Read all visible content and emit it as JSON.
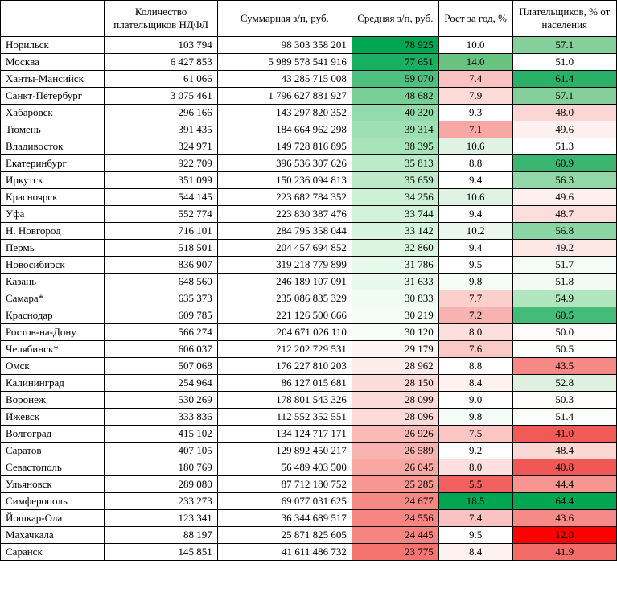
{
  "table": {
    "columns": [
      "",
      "Количество плательщиков НДФЛ",
      "Суммарная з/п, руб.",
      "Средняя з/п, руб.",
      "Рост за год, %",
      "Плательщиков, % от населения"
    ],
    "col_align": [
      "left",
      "right",
      "right",
      "right",
      "center",
      "center"
    ],
    "rows": [
      {
        "city": "Норильск",
        "count": "103 794",
        "sum": "98 303 358 201",
        "avg": "78 925",
        "growth": "10.0",
        "pct": "57.1",
        "c3": "#00a651",
        "c4": "#ffffff",
        "c5": "#85cf9b"
      },
      {
        "city": "Москва",
        "count": "6 427 853",
        "sum": "5 989 578 541 916",
        "avg": "77 651",
        "growth": "14.0",
        "pct": "51.0",
        "c3": "#19b061",
        "c4": "#6ac280",
        "c5": "#ffffff"
      },
      {
        "city": "Ханты-Мансийск",
        "count": "61 066",
        "sum": "43 285 715 008",
        "avg": "59 070",
        "growth": "7.4",
        "pct": "61.4",
        "c3": "#4ec07d",
        "c4": "#fac2c0",
        "c5": "#2bb068"
      },
      {
        "city": "Санкт-Петербург",
        "count": "3 075 461",
        "sum": "1 796 627 881 927",
        "avg": "48 682",
        "growth": "7.9",
        "pct": "57.1",
        "c3": "#77cf96",
        "c4": "#fcdad7",
        "c5": "#85cf9b"
      },
      {
        "city": "Хабаровск",
        "count": "296 166",
        "sum": "143 297 820 352",
        "avg": "40 320",
        "growth": "9.3",
        "pct": "48.0",
        "c3": "#94dbab",
        "c4": "#ffffff",
        "c5": "#fcd6d3"
      },
      {
        "city": "Тюмень",
        "count": "391 435",
        "sum": "184 664 962 298",
        "avg": "39 314",
        "growth": "7.1",
        "pct": "49.6",
        "c3": "#9fe0b3",
        "c4": "#f7a8a4",
        "c5": "#fef0ee"
      },
      {
        "city": "Владивосток",
        "count": "324 971",
        "sum": "149 728 816 895",
        "avg": "38 395",
        "growth": "10.6",
        "pct": "51.3",
        "c3": "#a6e3b9",
        "c4": "#e0f2e3",
        "c5": "#ffffff"
      },
      {
        "city": "Екатеринбург",
        "count": "922 709",
        "sum": "396 536 307 626",
        "avg": "35 813",
        "growth": "8.8",
        "pct": "60.9",
        "c3": "#bbebc8",
        "c4": "#ffffff",
        "c5": "#3bb671"
      },
      {
        "city": "Иркутск",
        "count": "351 099",
        "sum": "150 236 094 813",
        "avg": "35 659",
        "growth": "9.4",
        "pct": "56.3",
        "c3": "#bdebc9",
        "c4": "#ffffff",
        "c5": "#92d8a7"
      },
      {
        "city": "Красноярск",
        "count": "544 145",
        "sum": "223 682 784 352",
        "avg": "34 256",
        "growth": "10.6",
        "pct": "49.6",
        "c3": "#cdf1d5",
        "c4": "#e0f2e3",
        "c5": "#fef0ee"
      },
      {
        "city": "Уфа",
        "count": "552 774",
        "sum": "223 830 387 476",
        "avg": "33 744",
        "growth": "9.4",
        "pct": "48.7",
        "c3": "#d2f3da",
        "c4": "#ffffff",
        "c5": "#fddedc"
      },
      {
        "city": "Н. Новгород",
        "count": "716 101",
        "sum": "284 795 358 044",
        "avg": "33 142",
        "growth": "10.2",
        "pct": "56.8",
        "c3": "#d7f5de",
        "c4": "#ebf7ed",
        "c5": "#8ad5a1"
      },
      {
        "city": "Пермь",
        "count": "518 501",
        "sum": "204 457 694 852",
        "avg": "32 860",
        "growth": "9.4",
        "pct": "49.2",
        "c3": "#daf5e0",
        "c4": "#ffffff",
        "c5": "#fde7e4"
      },
      {
        "city": "Новосибирск",
        "count": "836 907",
        "sum": "319 218 779 899",
        "avg": "31 786",
        "growth": "9.5",
        "pct": "51.7",
        "c3": "#e6f9ea",
        "c4": "#ffffff",
        "c5": "#f5fbf6"
      },
      {
        "city": "Казань",
        "count": "648 560",
        "sum": "246 189 107 091",
        "avg": "31 633",
        "growth": "9.8",
        "pct": "51.8",
        "c3": "#e8f9ec",
        "c4": "#f5fbf6",
        "c5": "#f2faf3"
      },
      {
        "city": "Самара*",
        "count": "635 373",
        "sum": "235 086 835 329",
        "avg": "30 833",
        "growth": "7.7",
        "pct": "54.9",
        "c3": "#f0fcf3",
        "c4": "#fbcfcc",
        "c5": "#b0e5be"
      },
      {
        "city": "Краснодар",
        "count": "609 785",
        "sum": "221 126 500 666",
        "avg": "30 219",
        "growth": "7.2",
        "pct": "60.5",
        "c3": "#f5fdf7",
        "c4": "#f8b2af",
        "c5": "#45bb78"
      },
      {
        "city": "Ростов-на-Дону",
        "count": "566 274",
        "sum": "204 671 026 110",
        "avg": "30 120",
        "growth": "8.0",
        "pct": "50.0",
        "c3": "#f7fdf8",
        "c4": "#fde0de",
        "c5": "#fffbfb"
      },
      {
        "city": "Челябинск*",
        "count": "606 037",
        "sum": "212 202 729 531",
        "avg": "29 179",
        "growth": "7.6",
        "pct": "50.5",
        "c3": "#fef4f3",
        "c4": "#fbcac7",
        "c5": "#fdfffd"
      },
      {
        "city": "Омск",
        "count": "507 068",
        "sum": "176 227 810 203",
        "avg": "28 962",
        "growth": "8.8",
        "pct": "43.5",
        "c3": "#fdecea",
        "c4": "#ffffff",
        "c5": "#f58986"
      },
      {
        "city": "Калининград",
        "count": "254 964",
        "sum": "86 127 015 681",
        "avg": "28 150",
        "growth": "8.4",
        "pct": "52.8",
        "c3": "#fcdcd9",
        "c4": "#fef2f0",
        "c5": "#def1e1"
      },
      {
        "city": "Воронеж",
        "count": "530 269",
        "sum": "178 801 543 326",
        "avg": "28 099",
        "growth": "9.0",
        "pct": "50.3",
        "c3": "#fcdad7",
        "c4": "#ffffff",
        "c5": "#fffefd"
      },
      {
        "city": "Ижевск",
        "count": "333 836",
        "sum": "112 552 352 551",
        "avg": "28 096",
        "growth": "9.8",
        "pct": "51.4",
        "c3": "#fcdad7",
        "c4": "#f5fbf6",
        "c5": "#fbfdfb"
      },
      {
        "city": "Волгоград",
        "count": "415 102",
        "sum": "134 124 717 171",
        "avg": "26 926",
        "growth": "7.5",
        "pct": "41.0",
        "c3": "#fabbb7",
        "c4": "#fac5c2",
        "c5": "#f15a57"
      },
      {
        "city": "Саратов",
        "count": "407 105",
        "sum": "129 892 450 217",
        "avg": "26 589",
        "growth": "9.2",
        "pct": "48.4",
        "c3": "#f9b3b0",
        "c4": "#ffffff",
        "c5": "#fcd8d5"
      },
      {
        "city": "Севастополь",
        "count": "180 769",
        "sum": "56 489 403 500",
        "avg": "26 045",
        "growth": "8.0",
        "pct": "40.8",
        "c3": "#f9a7a3",
        "c4": "#fde0de",
        "c5": "#f15754"
      },
      {
        "city": "Ульяновск",
        "count": "289 080",
        "sum": "87 712 180 752",
        "avg": "25 285",
        "growth": "5.5",
        "pct": "44.4",
        "c3": "#f89692",
        "c4": "#f0615f",
        "c5": "#f6948f"
      },
      {
        "city": "Симферополь",
        "count": "233 273",
        "sum": "69 077 031 625",
        "avg": "24 677",
        "growth": "18.5",
        "pct": "64.4",
        "c3": "#f78985",
        "c4": "#00a651",
        "c5": "#00a651"
      },
      {
        "city": "Йошкар-Ола",
        "count": "123 341",
        "sum": "36 344 689 517",
        "avg": "24 556",
        "growth": "7.4",
        "pct": "43.6",
        "c3": "#f78682",
        "c4": "#fac2c0",
        "c5": "#f58b87"
      },
      {
        "city": "Махачкала",
        "count": "88 197",
        "sum": "25 871 825 605",
        "avg": "24 445",
        "growth": "9.5",
        "pct": "12.0",
        "c3": "#f68480",
        "c4": "#ffffff",
        "c5": "#ff0000"
      },
      {
        "city": "Саранск",
        "count": "145 851",
        "sum": "41 611 486 732",
        "avg": "23 775",
        "growth": "8.4",
        "pct": "41.9",
        "c3": "#f6746f",
        "c4": "#fef2f0",
        "c5": "#f26c68"
      }
    ]
  }
}
